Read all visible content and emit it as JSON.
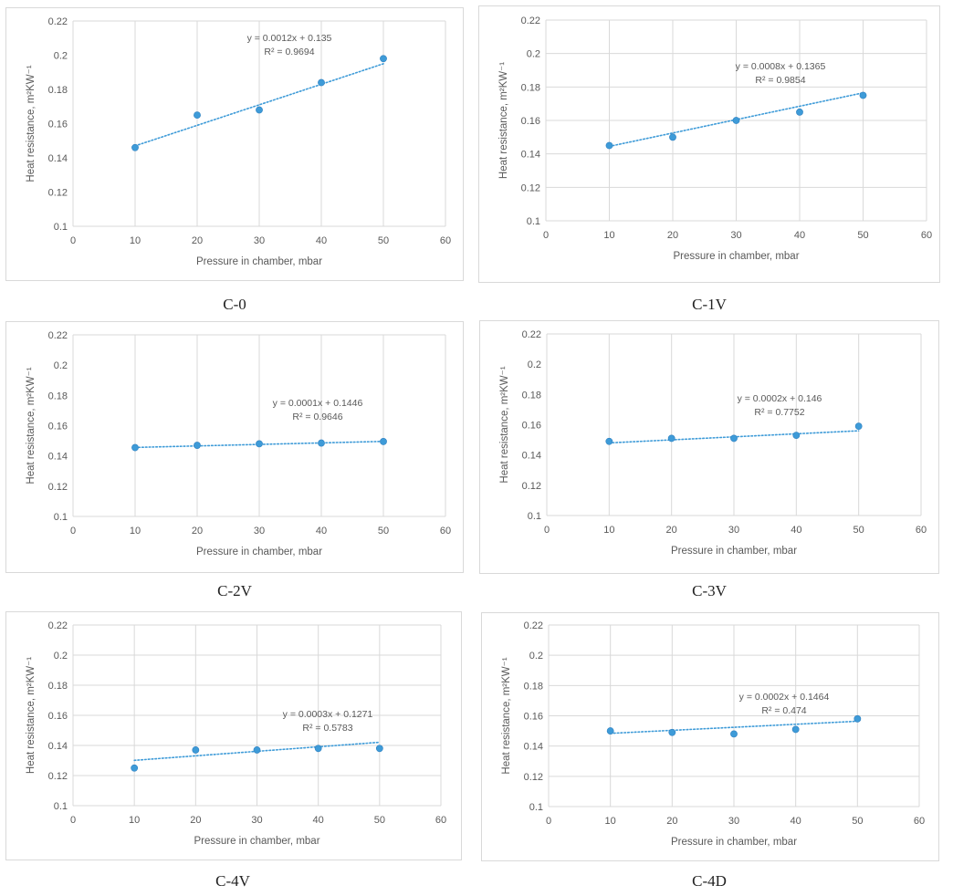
{
  "chart_data": [
    {
      "type": "scatter",
      "caption": "C-0",
      "xlabel": "Pressure in chamber, mbar",
      "ylabel": "Heat resistance, m²KW⁻¹",
      "xlim": [
        0,
        60
      ],
      "ylim": [
        0.1,
        0.22
      ],
      "xticks": [
        "0",
        "10",
        "20",
        "30",
        "40",
        "50",
        "60"
      ],
      "yticks": [
        "0.1",
        "0.12",
        "0.14",
        "0.16",
        "0.18",
        "0.2",
        "0.22"
      ],
      "grid": "vertical",
      "x": [
        10,
        20,
        30,
        40,
        50
      ],
      "y": [
        0.146,
        0.165,
        0.168,
        0.184,
        0.198
      ],
      "trendline": {
        "slope": 0.0012,
        "intercept": 0.135,
        "equation": "y = 0.0012x + 0.135",
        "r2": "R² = 0.9694"
      },
      "series_color": "#3e9bd8"
    },
    {
      "type": "scatter",
      "caption": "C-1V",
      "xlabel": "Pressure in chamber, mbar",
      "ylabel": "Heat resistance, m²KW⁻¹",
      "xlim": [
        0,
        60
      ],
      "ylim": [
        0.1,
        0.22
      ],
      "xticks": [
        "0",
        "10",
        "20",
        "30",
        "40",
        "50",
        "60"
      ],
      "yticks": [
        "0.1",
        "0.12",
        "0.14",
        "0.16",
        "0.18",
        "0.2",
        "0.22"
      ],
      "grid": "both",
      "x": [
        10,
        20,
        30,
        40,
        50
      ],
      "y": [
        0.145,
        0.15,
        0.16,
        0.165,
        0.175
      ],
      "trendline": {
        "slope": 0.0008,
        "intercept": 0.1365,
        "equation": "y = 0.0008x + 0.1365",
        "r2": "R² = 0.9854"
      },
      "series_color": "#3e9bd8"
    },
    {
      "type": "scatter",
      "caption": "C-2V",
      "xlabel": "Pressure in chamber, mbar",
      "ylabel": "Heat resistance, m²KW⁻¹",
      "xlim": [
        0,
        60
      ],
      "ylim": [
        0.1,
        0.22
      ],
      "xticks": [
        "0",
        "10",
        "20",
        "30",
        "40",
        "50",
        "60"
      ],
      "yticks": [
        "0.1",
        "0.12",
        "0.14",
        "0.16",
        "0.18",
        "0.2",
        "0.22"
      ],
      "grid": "vertical",
      "x": [
        10,
        20,
        30,
        40,
        50
      ],
      "y": [
        0.1455,
        0.147,
        0.148,
        0.1485,
        0.1495
      ],
      "trendline": {
        "slope": 0.0001,
        "intercept": 0.1446,
        "equation": "y = 0.0001x + 0.1446",
        "r2": "R² = 0.9646"
      },
      "series_color": "#3e9bd8"
    },
    {
      "type": "scatter",
      "caption": "C-3V",
      "xlabel": "Pressure in chamber, mbar",
      "ylabel": "Heat resistance, m²KW⁻¹",
      "xlim": [
        0,
        60
      ],
      "ylim": [
        0.1,
        0.22
      ],
      "xticks": [
        "0",
        "10",
        "20",
        "30",
        "40",
        "50",
        "60"
      ],
      "yticks": [
        "0.1",
        "0.12",
        "0.14",
        "0.16",
        "0.18",
        "0.2",
        "0.22"
      ],
      "grid": "vertical",
      "x": [
        10,
        20,
        30,
        40,
        50
      ],
      "y": [
        0.149,
        0.151,
        0.151,
        0.153,
        0.159
      ],
      "trendline": {
        "slope": 0.0002,
        "intercept": 0.146,
        "equation": "y = 0.0002x + 0.146",
        "r2": "R² = 0.7752"
      },
      "series_color": "#3e9bd8"
    },
    {
      "type": "scatter",
      "caption": "C-4V",
      "xlabel": "Pressure in chamber, mbar",
      "ylabel": "Heat resistance, m²KW⁻¹",
      "xlim": [
        0,
        60
      ],
      "ylim": [
        0.1,
        0.22
      ],
      "xticks": [
        "0",
        "10",
        "20",
        "30",
        "40",
        "50",
        "60"
      ],
      "yticks": [
        "0.1",
        "0.12",
        "0.14",
        "0.16",
        "0.18",
        "0.2",
        "0.22"
      ],
      "grid": "both",
      "x": [
        10,
        20,
        30,
        40,
        50
      ],
      "y": [
        0.125,
        0.137,
        0.137,
        0.138,
        0.138
      ],
      "trendline": {
        "slope": 0.0003,
        "intercept": 0.1271,
        "equation": "y = 0.0003x + 0.1271",
        "r2": "R² = 0.5783"
      },
      "series_color": "#3e9bd8"
    },
    {
      "type": "scatter",
      "caption": "C-4D",
      "xlabel": "Pressure in chamber, mbar",
      "ylabel": "Heat resistance, m²KW⁻¹",
      "xlim": [
        0,
        60
      ],
      "ylim": [
        0.1,
        0.22
      ],
      "xticks": [
        "0",
        "10",
        "20",
        "30",
        "40",
        "50",
        "60"
      ],
      "yticks": [
        "0.1",
        "0.12",
        "0.14",
        "0.16",
        "0.18",
        "0.2",
        "0.22"
      ],
      "grid": "both",
      "x": [
        10,
        20,
        30,
        40,
        50
      ],
      "y": [
        0.15,
        0.149,
        0.148,
        0.151,
        0.158
      ],
      "trendline": {
        "slope": 0.0002,
        "intercept": 0.1464,
        "equation": "y = 0.0002x + 0.1464",
        "r2": "R² = 0.474"
      },
      "series_color": "#3e9bd8"
    }
  ]
}
